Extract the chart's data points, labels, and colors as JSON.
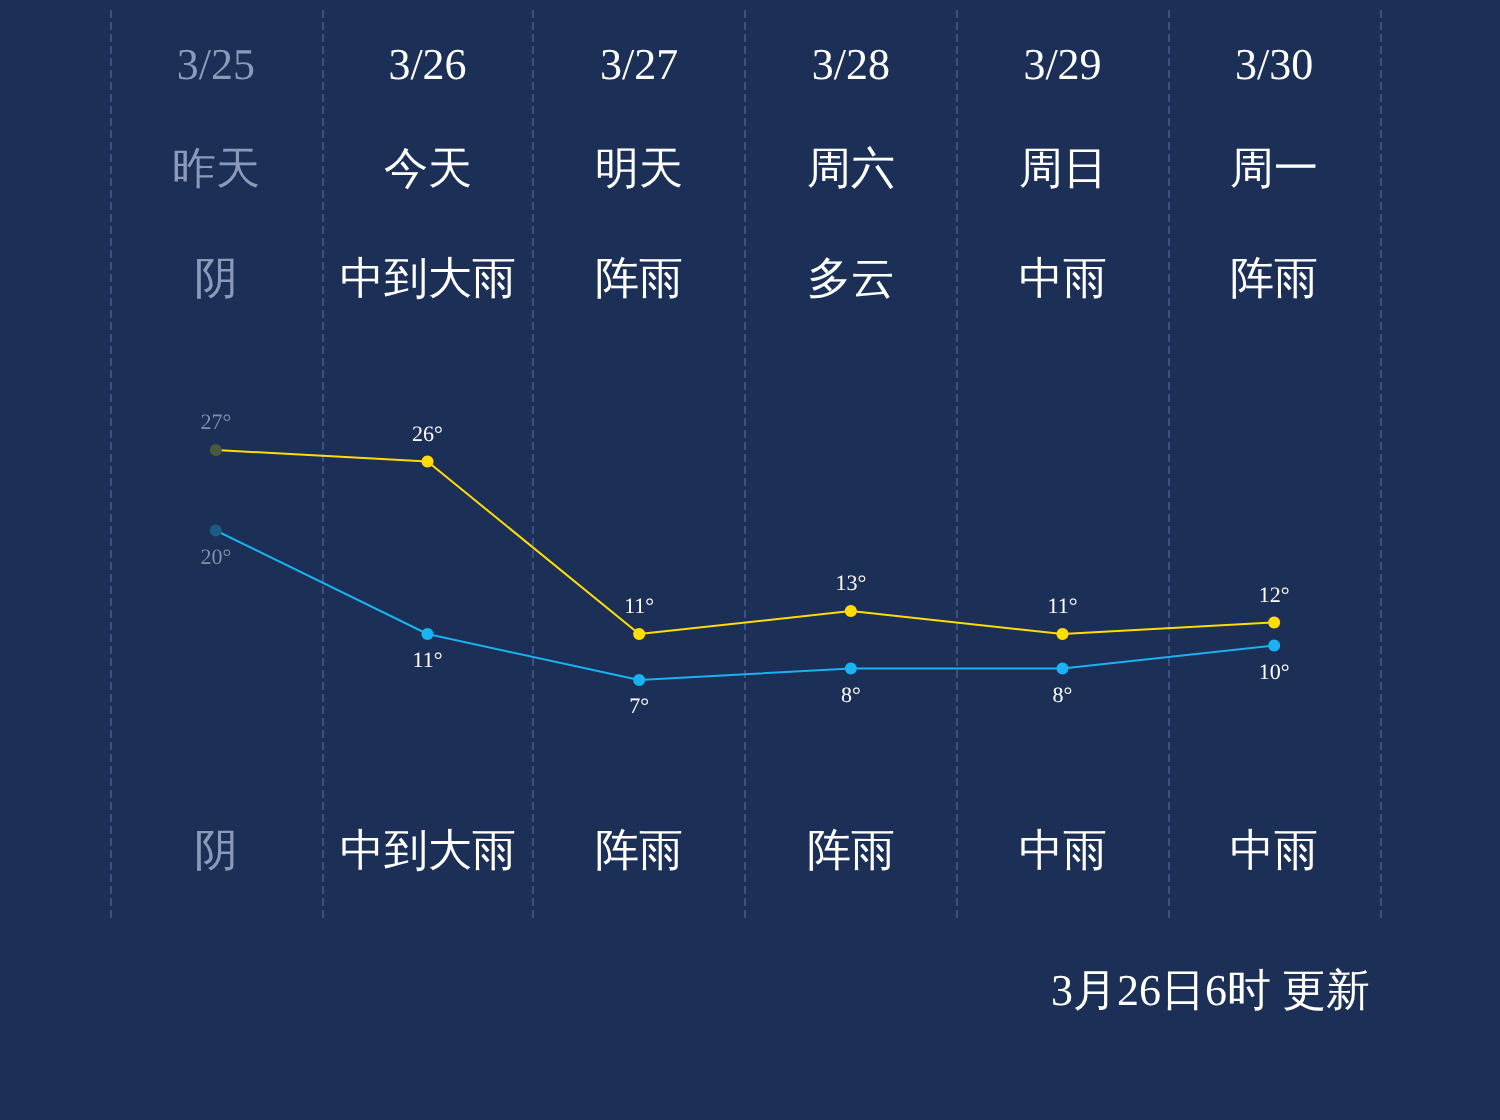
{
  "chart_data": {
    "type": "line",
    "categories": [
      "3/25",
      "3/26",
      "3/27",
      "3/28",
      "3/29",
      "3/30"
    ],
    "series": [
      {
        "color": "#ffdd00",
        "colors": [
          "#4a5a3a",
          "#ffdd00",
          "#ffdd00",
          "#ffdd00",
          "#ffdd00",
          "#ffdd00"
        ],
        "values": [
          27,
          26,
          11,
          13,
          11,
          12
        ],
        "value_labels": [
          "27°",
          "26°",
          "11°",
          "13°",
          "11°",
          "12°"
        ]
      },
      {
        "color": "#1ab2f0",
        "colors": [
          "#1d5a86",
          "#1ab2f0",
          "#1ab2f0",
          "#1ab2f0",
          "#1ab2f0",
          "#1ab2f0"
        ],
        "values": [
          20,
          11,
          7,
          8,
          8,
          10
        ],
        "value_labels": [
          "20°",
          "11°",
          "7°",
          "8°",
          "8°",
          "10°"
        ]
      }
    ],
    "annotations": [
      "昨天",
      "今天",
      "明天",
      "周六",
      "周日",
      "周一",
      "阴",
      "中到大雨",
      "阵雨",
      "多云",
      "中雨",
      "阵雨",
      "阴",
      "中到大雨",
      "阵雨",
      "阵雨",
      "中雨",
      "中雨",
      "3月26日6时 更新"
    ],
    "marker": "circle",
    "grid": "x"
  }
}
